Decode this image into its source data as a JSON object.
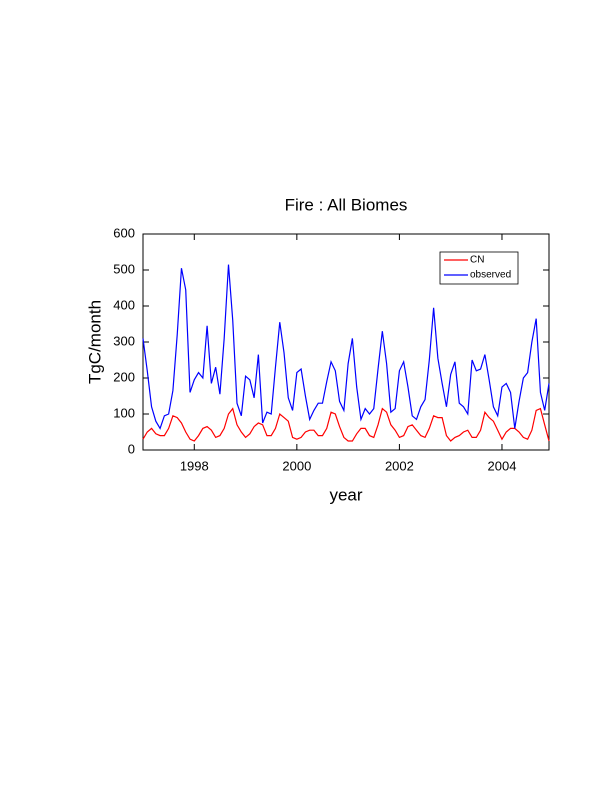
{
  "chart_data": {
    "type": "line",
    "title": "Fire : All Biomes",
    "x_label": "year",
    "y_label": "TgC/month",
    "x": [
      1997,
      1997.083,
      1997.167,
      1997.25,
      1997.333,
      1997.417,
      1997.5,
      1997.583,
      1997.667,
      1997.75,
      1997.833,
      1997.917,
      1998,
      1998.083,
      1998.167,
      1998.25,
      1998.333,
      1998.417,
      1998.5,
      1998.583,
      1998.667,
      1998.75,
      1998.833,
      1998.917,
      1999,
      1999.083,
      1999.167,
      1999.25,
      1999.333,
      1999.417,
      1999.5,
      1999.583,
      1999.667,
      1999.75,
      1999.833,
      1999.917,
      2000,
      2000.083,
      2000.167,
      2000.25,
      2000.333,
      2000.417,
      2000.5,
      2000.583,
      2000.667,
      2000.75,
      2000.833,
      2000.917,
      2001,
      2001.083,
      2001.167,
      2001.25,
      2001.333,
      2001.417,
      2001.5,
      2001.583,
      2001.667,
      2001.75,
      2001.833,
      2001.917,
      2002,
      2002.083,
      2002.167,
      2002.25,
      2002.333,
      2002.417,
      2002.5,
      2002.583,
      2002.667,
      2002.75,
      2002.833,
      2002.917,
      2003,
      2003.083,
      2003.167,
      2003.25,
      2003.333,
      2003.417,
      2003.5,
      2003.583,
      2003.667,
      2003.75,
      2003.833,
      2003.917,
      2004,
      2004.083,
      2004.167,
      2004.25,
      2004.333,
      2004.417,
      2004.5,
      2004.583,
      2004.667,
      2004.75,
      2004.833,
      2004.917
    ],
    "series": [
      {
        "name": "CN",
        "color": "#ff0000",
        "values": [
          30,
          50,
          60,
          45,
          40,
          40,
          60,
          95,
          90,
          75,
          50,
          30,
          25,
          40,
          60,
          65,
          55,
          35,
          40,
          60,
          100,
          115,
          70,
          50,
          35,
          45,
          65,
          75,
          70,
          40,
          40,
          60,
          100,
          90,
          80,
          35,
          30,
          35,
          50,
          55,
          55,
          40,
          40,
          60,
          105,
          100,
          65,
          35,
          25,
          25,
          45,
          60,
          60,
          40,
          35,
          70,
          115,
          105,
          70,
          55,
          35,
          40,
          65,
          70,
          55,
          40,
          35,
          60,
          95,
          90,
          90,
          40,
          25,
          35,
          40,
          50,
          55,
          35,
          35,
          55,
          105,
          90,
          80,
          55,
          30,
          50,
          60,
          60,
          50,
          35,
          30,
          55,
          110,
          115,
          70,
          25
        ]
      },
      {
        "name": "observed",
        "color": "#0000ff",
        "values": [
          310,
          220,
          120,
          80,
          60,
          95,
          100,
          165,
          320,
          505,
          445,
          160,
          195,
          215,
          200,
          345,
          185,
          230,
          155,
          310,
          515,
          360,
          130,
          95,
          205,
          195,
          145,
          265,
          75,
          105,
          100,
          230,
          355,
          270,
          145,
          110,
          215,
          225,
          150,
          85,
          110,
          130,
          130,
          190,
          245,
          220,
          135,
          110,
          240,
          310,
          175,
          85,
          115,
          100,
          115,
          225,
          330,
          240,
          105,
          115,
          220,
          245,
          175,
          95,
          85,
          120,
          140,
          250,
          395,
          255,
          185,
          120,
          210,
          245,
          130,
          120,
          100,
          250,
          220,
          225,
          265,
          195,
          120,
          95,
          175,
          185,
          160,
          60,
          135,
          200,
          215,
          300,
          365,
          160,
          110,
          185
        ]
      }
    ],
    "xlim": [
      1997,
      2004.917
    ],
    "ylim": [
      0,
      600
    ],
    "xticks": [
      1998,
      2000,
      2002,
      2004
    ],
    "yticks": [
      0,
      100,
      200,
      300,
      400,
      500,
      600
    ],
    "legend_position": "upper right"
  }
}
